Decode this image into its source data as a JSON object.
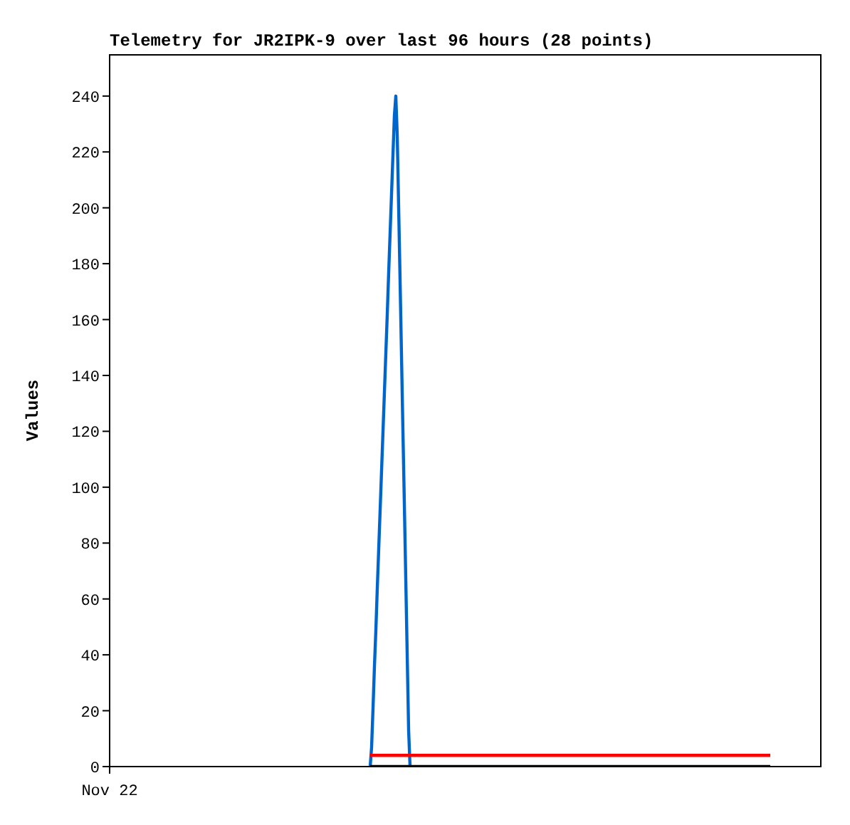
{
  "chart_data": {
    "type": "line",
    "title": "Telemetry for JR2IPK-9 over last 96 hours (28 points)",
    "ylabel": "Values",
    "categories": [
      "Nov 22",
      null,
      null,
      null,
      null,
      null,
      null,
      null,
      null,
      null,
      null,
      null,
      null,
      null,
      null,
      null,
      null,
      null,
      null,
      null,
      null,
      null,
      null,
      null,
      null,
      null,
      null,
      null,
      null,
      null,
      null,
      null,
      null,
      null,
      null,
      null,
      null,
      null,
      null,
      null,
      null,
      null,
      null,
      null,
      null,
      null,
      null,
      null,
      null,
      null,
      null,
      null,
      null,
      null,
      null,
      null,
      null,
      null,
      null,
      null,
      null,
      null,
      null,
      null,
      null,
      null,
      null,
      null,
      null,
      null,
      null,
      null,
      null,
      null,
      null,
      null,
      null,
      null,
      null,
      null,
      null,
      null,
      null,
      null,
      null,
      null,
      null,
      null,
      null,
      null,
      null,
      null,
      null,
      null,
      null,
      null,
      null,
      null,
      null,
      null,
      null,
      null,
      null,
      null,
      null,
      null,
      null,
      null,
      null,
      null,
      null,
      null,
      null,
      null,
      null,
      null,
      null,
      null,
      null,
      null,
      null,
      null,
      null,
      null,
      null,
      null,
      null,
      null,
      null,
      null,
      null,
      null,
      null,
      null,
      null,
      null,
      null,
      null,
      null,
      null,
      null,
      null,
      null,
      null,
      null,
      null,
      null,
      null,
      null,
      null,
      null,
      null,
      null,
      null,
      null,
      null,
      null,
      null,
      null,
      null,
      null,
      null,
      null,
      null,
      null,
      null,
      null,
      null,
      null,
      null,
      null,
      null,
      null,
      null,
      null,
      null,
      null,
      null,
      null,
      null,
      null,
      null,
      null,
      null,
      null,
      null,
      null,
      null,
      null,
      null,
      null,
      null,
      null,
      null,
      null,
      null,
      null,
      null,
      null,
      null,
      null,
      null,
      null,
      null,
      null,
      null,
      null,
      null,
      null,
      null,
      null,
      null,
      null,
      null,
      null,
      null,
      null,
      null,
      null,
      null,
      null,
      null,
      null,
      null,
      null,
      null,
      null,
      null,
      null,
      null,
      null,
      null,
      null,
      null,
      null,
      null,
      null,
      null,
      null,
      null,
      null,
      null,
      null,
      null,
      null,
      null,
      null,
      null,
      null,
      null,
      null,
      null,
      null,
      null,
      null,
      null,
      null,
      null,
      null,
      null,
      null,
      null,
      null,
      null,
      null,
      null,
      null,
      null,
      null,
      null,
      null,
      null,
      null,
      null,
      null,
      null,
      null,
      null,
      null,
      null,
      null,
      null,
      null,
      null,
      null,
      null,
      null,
      null,
      null,
      null,
      null,
      null,
      null,
      null,
      null,
      null,
      null,
      null,
      null,
      null,
      null,
      null,
      null,
      null,
      null,
      null,
      null,
      null,
      null,
      null,
      null,
      null,
      null,
      null,
      null,
      null,
      null,
      null,
      null,
      null,
      null,
      null,
      null,
      null,
      null,
      null,
      null,
      null,
      null,
      null,
      null,
      null,
      null,
      null,
      null,
      null,
      null,
      null,
      null,
      null,
      null,
      null,
      null,
      null,
      null,
      null,
      null,
      null,
      null,
      null,
      null,
      null,
      null,
      null,
      null,
      null,
      null,
      null,
      null,
      null,
      null,
      null,
      null,
      null,
      null,
      null,
      null,
      null,
      null,
      null,
      null,
      null,
      null,
      null,
      null,
      null,
      null,
      null,
      null,
      null,
      null,
      null,
      null,
      null,
      null,
      null,
      null,
      null,
      null,
      null,
      null,
      null,
      null,
      null,
      null,
      null,
      null,
      null,
      null,
      null,
      null,
      null,
      null,
      null,
      null,
      null,
      null,
      null,
      null,
      null,
      null,
      null,
      null,
      null,
      null,
      null,
      null,
      null,
      null,
      null,
      null,
      null,
      null,
      null,
      null,
      null,
      null,
      null,
      null,
      null,
      null,
      null,
      null,
      null,
      null,
      null,
      null,
      null,
      null,
      null,
      null,
      null,
      null,
      null,
      null,
      null,
      null,
      null,
      null,
      null,
      null,
      null,
      null,
      null,
      null,
      null,
      null,
      null,
      null,
      null,
      null,
      null,
      null,
      null,
      null,
      null,
      null,
      null,
      null,
      null,
      null,
      null,
      null,
      null,
      null,
      null,
      null,
      null,
      null,
      null,
      null,
      null,
      null,
      null,
      null,
      null,
      null,
      null,
      null,
      null,
      null,
      null,
      null,
      null,
      null,
      null,
      null,
      null,
      null,
      null,
      null
    ],
    "ylim": [
      0,
      255
    ],
    "yticks": [
      0,
      20,
      40,
      60,
      80,
      100,
      120,
      140,
      160,
      180,
      200,
      220,
      240
    ],
    "grid": false,
    "legend": false,
    "marker": "none",
    "series": [
      {
        "color": "#0066cc",
        "values": [
          null,
          null,
          null,
          null,
          null,
          null,
          null,
          null,
          null,
          null,
          null,
          null,
          null,
          null,
          null,
          null,
          null,
          null,
          null,
          null,
          null,
          null,
          null,
          null,
          null,
          null,
          null,
          null,
          null,
          null,
          null,
          null,
          null,
          null,
          null,
          null,
          null,
          null,
          null,
          null,
          null,
          null,
          null,
          null,
          null,
          null,
          null,
          null,
          null,
          null,
          null,
          null,
          null,
          null,
          null,
          null,
          null,
          null,
          null,
          null,
          null,
          null,
          null,
          null,
          null,
          null,
          null,
          null,
          null,
          null,
          null,
          null,
          null,
          null,
          null,
          null,
          null,
          null,
          null,
          null,
          null,
          null,
          null,
          null,
          null,
          null,
          null,
          null,
          null,
          null,
          null,
          null,
          null,
          null,
          null,
          null,
          null,
          null,
          null,
          null,
          null,
          null,
          null,
          null,
          null,
          null,
          null,
          null,
          null,
          null,
          null,
          null,
          null,
          null,
          null,
          null,
          null,
          null,
          null,
          null,
          null,
          null,
          null,
          null,
          null,
          null,
          null,
          null,
          null,
          null,
          null,
          null,
          null,
          null,
          null,
          null,
          null,
          null,
          null,
          null,
          null,
          null,
          null,
          null,
          null,
          null,
          null,
          null,
          null,
          null,
          null,
          null,
          null,
          null,
          null,
          null,
          null,
          null,
          null,
          null,
          null,
          null,
          null,
          null,
          null,
          null,
          null,
          null,
          null,
          null,
          null,
          null,
          null,
          null,
          null,
          null,
          null,
          null,
          null,
          null,
          null,
          null,
          null,
          0,
          7,
          21,
          36,
          49,
          64,
          78,
          92,
          106,
          120,
          134,
          148,
          162,
          177,
          191,
          205,
          219,
          233,
          240,
          226,
          200,
          174,
          147,
          120,
          94,
          67,
          40,
          13,
          0,
          null,
          null,
          null,
          null,
          null,
          null,
          null,
          null,
          null,
          null,
          null,
          null,
          null,
          null,
          null,
          null,
          null,
          null,
          null,
          null,
          null,
          null,
          null,
          null,
          null,
          null,
          null,
          null,
          null,
          null,
          null,
          null,
          null,
          null,
          null,
          null,
          null,
          null,
          null,
          null,
          null,
          null,
          null,
          null,
          null,
          null,
          null,
          null,
          null,
          null,
          null,
          null,
          null,
          null,
          null,
          null,
          null,
          null,
          null,
          null,
          null,
          null,
          null,
          null,
          null,
          null,
          null,
          null,
          null,
          null,
          null,
          null,
          null,
          null,
          null,
          null,
          null,
          null,
          null,
          null,
          null,
          null,
          null,
          null,
          null,
          null,
          null,
          null,
          null,
          null,
          null,
          null,
          null,
          null,
          null,
          null,
          null,
          null,
          null,
          null,
          null,
          null,
          null,
          null,
          null,
          null,
          null,
          null,
          null,
          null,
          null,
          null,
          null,
          null,
          null,
          null,
          null,
          null,
          null,
          null,
          null,
          null,
          null,
          null,
          null,
          null,
          null,
          null,
          null,
          null,
          null,
          null,
          null,
          null,
          null,
          null,
          null,
          null,
          null,
          null,
          null,
          null,
          null,
          null,
          null,
          null,
          null,
          null,
          null,
          null,
          null,
          null,
          null,
          null,
          null,
          null,
          null,
          null,
          null,
          null,
          null,
          null,
          null,
          null,
          null,
          null,
          null,
          null,
          null,
          null,
          null,
          null,
          null,
          null,
          null,
          null,
          null,
          null,
          null,
          null,
          null,
          null,
          null,
          null,
          null,
          null,
          null,
          null,
          null,
          null,
          null,
          null,
          null,
          null,
          null,
          null,
          null,
          null,
          null,
          null,
          null,
          null,
          null,
          null,
          null,
          null,
          null,
          null,
          null,
          null,
          null,
          null,
          null,
          null,
          null,
          null,
          null,
          null,
          null,
          null,
          null,
          null,
          null,
          null,
          null,
          null,
          null,
          null,
          null,
          null,
          null,
          null,
          null,
          null,
          null,
          null,
          null,
          null,
          null,
          null,
          null,
          null,
          null,
          null,
          null,
          null,
          null,
          null,
          null,
          null,
          null,
          null,
          null,
          null,
          null,
          null,
          null,
          null,
          null,
          null,
          null,
          null,
          null,
          null,
          null,
          null,
          null,
          null,
          null,
          null,
          null,
          null,
          null,
          null,
          null,
          null,
          null,
          null,
          null,
          null,
          null,
          null,
          null,
          null,
          null,
          null,
          null,
          null,
          null
        ]
      },
      {
        "color": "#ff0000",
        "values": [
          null,
          null,
          null,
          null,
          null,
          null,
          null,
          null,
          null,
          null,
          null,
          null,
          null,
          null,
          null,
          null,
          null,
          null,
          null,
          null,
          null,
          null,
          null,
          null,
          null,
          null,
          null,
          null,
          null,
          null,
          null,
          null,
          null,
          null,
          null,
          null,
          null,
          null,
          null,
          null,
          null,
          null,
          null,
          null,
          null,
          null,
          null,
          null,
          null,
          null,
          null,
          null,
          null,
          null,
          null,
          null,
          null,
          null,
          null,
          null,
          null,
          null,
          null,
          null,
          null,
          null,
          null,
          null,
          null,
          null,
          null,
          null,
          null,
          null,
          null,
          null,
          null,
          null,
          null,
          null,
          null,
          null,
          null,
          null,
          null,
          null,
          null,
          null,
          null,
          null,
          null,
          null,
          null,
          null,
          null,
          null,
          null,
          null,
          null,
          null,
          null,
          null,
          null,
          null,
          null,
          null,
          null,
          null,
          null,
          null,
          null,
          null,
          null,
          null,
          null,
          null,
          null,
          null,
          null,
          null,
          null,
          null,
          null,
          null,
          null,
          null,
          null,
          null,
          null,
          null,
          null,
          null,
          null,
          null,
          null,
          null,
          null,
          null,
          null,
          null,
          null,
          null,
          null,
          null,
          null,
          null,
          null,
          null,
          null,
          null,
          null,
          null,
          null,
          null,
          null,
          null,
          null,
          null,
          null,
          null,
          null,
          null,
          null,
          null,
          null,
          null,
          null,
          null,
          null,
          null,
          null,
          null,
          null,
          null,
          null,
          null,
          null,
          null,
          null,
          null,
          null,
          null,
          null,
          4,
          4,
          4,
          4,
          4,
          4,
          4,
          4,
          4,
          4,
          4,
          4,
          4,
          4,
          4,
          4,
          4,
          4,
          4,
          4,
          4,
          4,
          4,
          4,
          4,
          4,
          4,
          4,
          4,
          4,
          4,
          4,
          4,
          4,
          4,
          4,
          4,
          4,
          4,
          4,
          4,
          4,
          4,
          4,
          4,
          4,
          4,
          4,
          4,
          4,
          4,
          4,
          4,
          4,
          4,
          4,
          4,
          4,
          4,
          4,
          4,
          4,
          4,
          4,
          4,
          4,
          4,
          4,
          4,
          4,
          4,
          4,
          4,
          4,
          4,
          4,
          4,
          4,
          4,
          4,
          4,
          4,
          4,
          4,
          4,
          4,
          4,
          4,
          4,
          4,
          4,
          4,
          4,
          4,
          4,
          4,
          4,
          4,
          4,
          4,
          4,
          4,
          4,
          4,
          4,
          4,
          4,
          4,
          4,
          4,
          4,
          4,
          4,
          4,
          4,
          4,
          4,
          4,
          4,
          4,
          4,
          4,
          4,
          4,
          4,
          4,
          4,
          4,
          4,
          4,
          4,
          4,
          4,
          4,
          4,
          4,
          4,
          4,
          4,
          4,
          4,
          4,
          4,
          4,
          4,
          4,
          4,
          4,
          4,
          4,
          4,
          4,
          4,
          4,
          4,
          4,
          4,
          4,
          4,
          4,
          4,
          4,
          4,
          4,
          4,
          4,
          4,
          4,
          4,
          4,
          4,
          4,
          4,
          4,
          4,
          4,
          4,
          4,
          4,
          4,
          4,
          4,
          4,
          4,
          4,
          4,
          4,
          4,
          4,
          4,
          4,
          4,
          4,
          4,
          4,
          4,
          4,
          4,
          4,
          4,
          4,
          4,
          4,
          4,
          4,
          4,
          4,
          4,
          4,
          4,
          4,
          4,
          4,
          4,
          4,
          4,
          4,
          4,
          4,
          4,
          4,
          4,
          4,
          4,
          4,
          4,
          4,
          4,
          4,
          4,
          4,
          4,
          4,
          4,
          4,
          4,
          4,
          4,
          4,
          4,
          4,
          4,
          4,
          4,
          4,
          4,
          4,
          4,
          4,
          4,
          4,
          4,
          4,
          4,
          4,
          4,
          4,
          4,
          4,
          4,
          4,
          4,
          4,
          4,
          4,
          4,
          4,
          4,
          4,
          4,
          4,
          4,
          4,
          4,
          4,
          4,
          4,
          4,
          4,
          4,
          4,
          4,
          null,
          null,
          null,
          null,
          null,
          null,
          null,
          null,
          null,
          null,
          null,
          null,
          null,
          null,
          null,
          null,
          null,
          null,
          null,
          null,
          null,
          null,
          null,
          null,
          null,
          null,
          null,
          null,
          null,
          null,
          null,
          null,
          null,
          null,
          null,
          null
        ]
      },
      {
        "color": "#000000",
        "values": [
          null,
          null,
          null,
          null,
          null,
          null,
          null,
          null,
          null,
          null,
          null,
          null,
          null,
          null,
          null,
          null,
          null,
          null,
          null,
          null,
          null,
          null,
          null,
          null,
          null,
          null,
          null,
          null,
          null,
          null,
          null,
          null,
          null,
          null,
          null,
          null,
          null,
          null,
          null,
          null,
          null,
          null,
          null,
          null,
          null,
          null,
          null,
          null,
          null,
          null,
          null,
          null,
          null,
          null,
          null,
          null,
          null,
          null,
          null,
          null,
          null,
          null,
          null,
          null,
          null,
          null,
          null,
          null,
          null,
          null,
          null,
          null,
          null,
          null,
          null,
          null,
          null,
          null,
          null,
          null,
          null,
          null,
          null,
          null,
          null,
          null,
          null,
          null,
          null,
          null,
          null,
          null,
          null,
          null,
          null,
          null,
          null,
          null,
          null,
          null,
          null,
          null,
          null,
          null,
          null,
          null,
          null,
          null,
          null,
          null,
          null,
          null,
          null,
          null,
          null,
          null,
          null,
          null,
          null,
          null,
          null,
          null,
          null,
          null,
          null,
          null,
          null,
          null,
          null,
          null,
          null,
          null,
          null,
          null,
          null,
          null,
          null,
          null,
          null,
          null,
          null,
          null,
          null,
          null,
          null,
          null,
          null,
          null,
          null,
          null,
          null,
          null,
          null,
          null,
          null,
          null,
          null,
          null,
          null,
          null,
          null,
          null,
          null,
          null,
          null,
          null,
          null,
          null,
          null,
          null,
          null,
          null,
          null,
          null,
          null,
          null,
          null,
          null,
          null,
          null,
          null,
          null,
          null,
          0,
          0,
          0,
          0,
          0,
          0,
          0,
          0,
          0,
          0,
          0,
          0,
          0,
          0,
          0,
          0,
          0,
          0,
          0,
          0,
          0,
          0,
          0,
          0,
          0,
          0,
          0,
          0,
          0,
          0,
          0,
          0,
          0,
          0,
          0,
          0,
          0,
          0,
          0,
          0,
          0,
          0,
          0,
          0,
          0,
          0,
          0,
          0,
          0,
          0,
          0,
          0,
          0,
          0,
          0,
          0,
          0,
          0,
          0,
          0,
          0,
          0,
          0,
          0,
          0,
          0,
          0,
          0,
          0,
          0,
          0,
          0,
          0,
          0,
          0,
          0,
          0,
          0,
          0,
          0,
          0,
          0,
          0,
          0,
          0,
          0,
          0,
          0,
          0,
          0,
          0,
          0,
          0,
          0,
          0,
          0,
          0,
          0,
          0,
          0,
          0,
          0,
          0,
          0,
          0,
          0,
          0,
          0,
          0,
          0,
          0,
          0,
          0,
          0,
          0,
          0,
          0,
          0,
          0,
          0,
          0,
          0,
          0,
          0,
          0,
          0,
          0,
          0,
          0,
          0,
          0,
          0,
          0,
          0,
          0,
          0,
          0,
          0,
          0,
          0,
          0,
          0,
          0,
          0,
          0,
          0,
          0,
          0,
          0,
          0,
          0,
          0,
          0,
          0,
          0,
          0,
          0,
          0,
          0,
          0,
          0,
          0,
          0,
          0,
          0,
          0,
          0,
          0,
          0,
          0,
          0,
          0,
          0,
          0,
          0,
          0,
          0,
          0,
          0,
          0,
          0,
          0,
          0,
          0,
          0,
          0,
          0,
          0,
          0,
          0,
          0,
          0,
          0,
          0,
          0,
          0,
          0,
          0,
          0,
          0,
          0,
          0,
          0,
          0,
          0,
          0,
          0,
          0,
          0,
          0,
          0,
          0,
          0,
          0,
          0,
          0,
          0,
          0,
          0,
          0,
          0,
          0,
          0,
          0,
          0,
          0,
          0,
          0,
          0,
          0,
          0,
          0,
          0,
          0,
          0,
          0,
          0,
          0,
          0,
          0,
          0,
          0,
          0,
          0,
          0,
          0,
          0,
          0,
          0,
          0,
          0,
          0,
          0,
          0,
          0,
          0,
          0,
          0,
          0,
          0,
          0,
          0,
          0,
          0,
          0,
          0,
          0,
          0,
          0,
          0,
          0,
          0,
          0,
          0,
          0,
          0,
          0,
          0,
          0,
          0,
          0,
          0,
          null,
          null,
          null,
          null,
          null,
          null,
          null,
          null,
          null,
          null,
          null,
          null,
          null,
          null,
          null,
          null,
          null,
          null,
          null,
          null,
          null,
          null,
          null,
          null,
          null,
          null,
          null,
          null,
          null,
          null,
          null,
          null,
          null,
          null,
          null,
          null
        ]
      }
    ]
  }
}
